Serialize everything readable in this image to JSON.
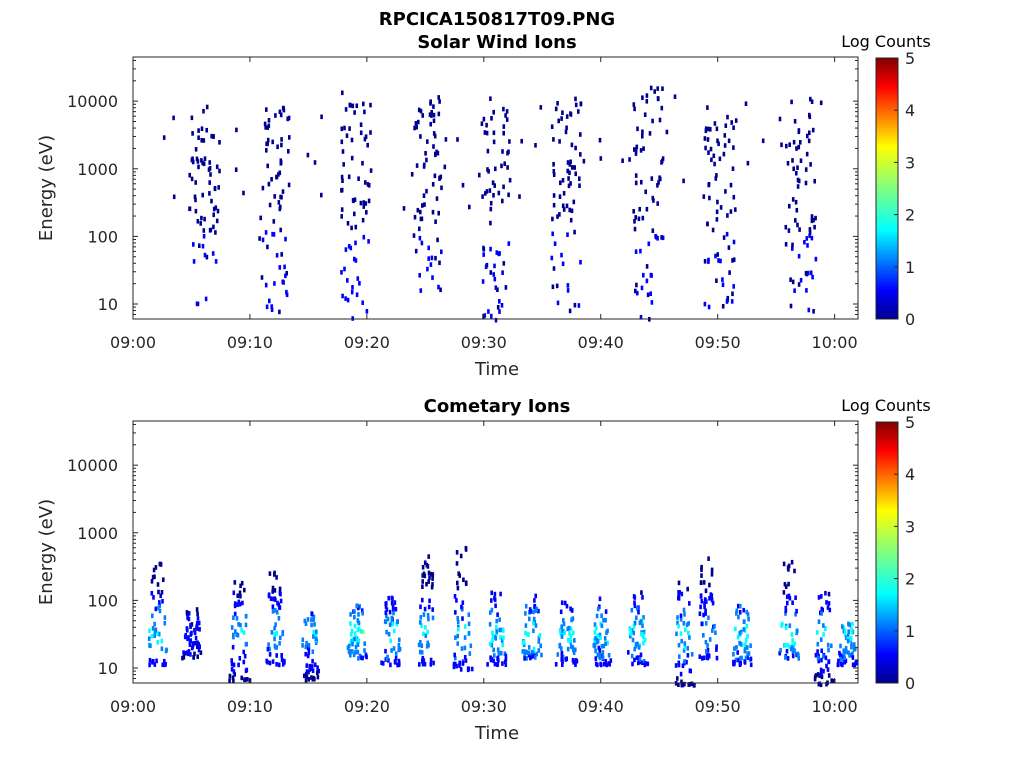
{
  "figure": {
    "title": "RPCICA150817T09.PNG"
  },
  "colormap": [
    "#00008f",
    "#0000ff",
    "#0080ff",
    "#00ffff",
    "#80ff80",
    "#ffff00",
    "#ff8000",
    "#ff0000",
    "#800000"
  ],
  "chart_data": [
    {
      "type": "heatmap",
      "title": "Solar Wind Ions",
      "xlabel": "Time",
      "ylabel": "Energy (eV)",
      "yscale": "log",
      "xlim": [
        "09:00",
        "10:02"
      ],
      "ylim": [
        6,
        45000
      ],
      "x_ticks": [
        "09:00",
        "09:10",
        "09:20",
        "09:30",
        "09:40",
        "09:50",
        "10:00"
      ],
      "y_ticks": [
        "10",
        "100",
        "1000",
        "10000"
      ],
      "colorbar": {
        "label": "Log Counts",
        "ticks": [
          "0",
          "1",
          "2",
          "3",
          "4",
          "5"
        ],
        "range": [
          0,
          5
        ]
      },
      "grid": false,
      "bursts": [
        {
          "center": "09:06",
          "sparse_top": 9000,
          "dense_bottom": 10,
          "peak_log_counts": 0.6
        },
        {
          "center": "09:12",
          "sparse_top": 9000,
          "dense_bottom": 6,
          "peak_log_counts": 0.6
        },
        {
          "center": "09:19",
          "sparse_top": 12000,
          "dense_bottom": 6,
          "peak_log_counts": 0.9
        },
        {
          "center": "09:25",
          "sparse_top": 13000,
          "dense_bottom": 15,
          "peak_log_counts": 0.6
        },
        {
          "center": "09:31",
          "sparse_top": 10000,
          "dense_bottom": 6,
          "peak_log_counts": 0.6
        },
        {
          "center": "09:37",
          "sparse_top": 12000,
          "dense_bottom": 6,
          "peak_log_counts": 0.6
        },
        {
          "center": "09:44",
          "sparse_top": 22000,
          "dense_bottom": 6,
          "peak_log_counts": 0.6
        },
        {
          "center": "09:50",
          "sparse_top": 12000,
          "dense_bottom": 8,
          "peak_log_counts": 0.6
        },
        {
          "center": "09:57",
          "sparse_top": 12000,
          "dense_bottom": 8,
          "peak_log_counts": 0.6
        }
      ]
    },
    {
      "type": "heatmap",
      "title": "Cometary Ions",
      "xlabel": "Time",
      "ylabel": "Energy (eV)",
      "yscale": "log",
      "xlim": [
        "09:00",
        "10:02"
      ],
      "ylim": [
        6,
        45000
      ],
      "x_ticks": [
        "09:00",
        "09:10",
        "09:20",
        "09:30",
        "09:40",
        "09:50",
        "10:00"
      ],
      "y_ticks": [
        "10",
        "100",
        "1000",
        "10000"
      ],
      "colorbar": {
        "label": "Log Counts",
        "ticks": [
          "0",
          "1",
          "2",
          "3",
          "4",
          "5"
        ],
        "range": [
          0,
          5
        ]
      },
      "grid": false,
      "bursts": [
        {
          "center": "09:02",
          "top": 450,
          "bottom": 12,
          "peak_log_counts": 2.2
        },
        {
          "center": "09:05",
          "top": 80,
          "bottom": 15,
          "peak_log_counts": 0.5
        },
        {
          "center": "09:09",
          "top": 200,
          "bottom": 7,
          "peak_log_counts": 1.8
        },
        {
          "center": "09:12",
          "top": 300,
          "bottom": 12,
          "peak_log_counts": 1.9
        },
        {
          "center": "09:15",
          "top": 80,
          "bottom": 7,
          "peak_log_counts": 1.8
        },
        {
          "center": "09:19",
          "top": 100,
          "bottom": 15,
          "peak_log_counts": 2.3
        },
        {
          "center": "09:22",
          "top": 120,
          "bottom": 12,
          "peak_log_counts": 2.0
        },
        {
          "center": "09:25",
          "top": 500,
          "bottom": 12,
          "peak_log_counts": 2.0
        },
        {
          "center": "09:28",
          "top": 650,
          "bottom": 10,
          "peak_log_counts": 2.0
        },
        {
          "center": "09:31",
          "top": 150,
          "bottom": 12,
          "peak_log_counts": 2.1
        },
        {
          "center": "09:34",
          "top": 150,
          "bottom": 15,
          "peak_log_counts": 2.3
        },
        {
          "center": "09:37",
          "top": 100,
          "bottom": 12,
          "peak_log_counts": 2.1
        },
        {
          "center": "09:40",
          "top": 120,
          "bottom": 12,
          "peak_log_counts": 2.1
        },
        {
          "center": "09:43",
          "top": 150,
          "bottom": 12,
          "peak_log_counts": 2.2
        },
        {
          "center": "09:47",
          "top": 200,
          "bottom": 6,
          "peak_log_counts": 2.1
        },
        {
          "center": "09:49",
          "top": 450,
          "bottom": 15,
          "peak_log_counts": 1.6
        },
        {
          "center": "09:52",
          "top": 100,
          "bottom": 12,
          "peak_log_counts": 2.2
        },
        {
          "center": "09:56",
          "top": 400,
          "bottom": 15,
          "peak_log_counts": 2.2
        },
        {
          "center": "09:59",
          "top": 150,
          "bottom": 6,
          "peak_log_counts": 1.8
        },
        {
          "center": "10:01",
          "top": 50,
          "bottom": 12,
          "peak_log_counts": 2.0
        }
      ]
    }
  ]
}
